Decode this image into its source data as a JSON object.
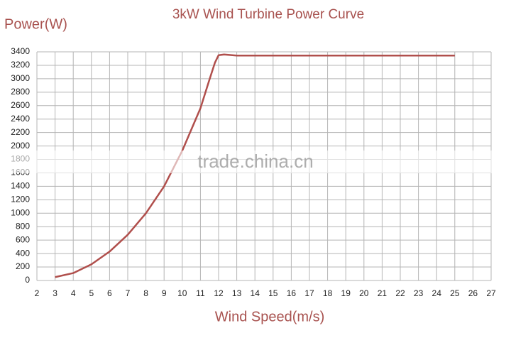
{
  "chart_data": {
    "type": "line",
    "title": "3kW Wind Turbine Power Curve",
    "y_label": "Power(W)",
    "x_label": "Wind Speed(m/s)",
    "watermark": "trade.china.cn",
    "x": [
      3,
      4,
      5,
      6,
      7,
      8,
      9,
      10,
      11,
      11.5,
      11.8,
      12,
      12.3,
      13,
      25
    ],
    "series": [
      {
        "name": "Power",
        "color": "#b04f4c",
        "values": [
          50,
          110,
          240,
          430,
          680,
          1000,
          1400,
          1930,
          2560,
          2990,
          3240,
          3350,
          3360,
          3345,
          3345
        ]
      }
    ],
    "xlim": [
      2,
      27
    ],
    "xticks": [
      2,
      3,
      4,
      5,
      6,
      7,
      8,
      9,
      10,
      11,
      12,
      13,
      14,
      15,
      16,
      17,
      18,
      19,
      20,
      21,
      22,
      23,
      24,
      25,
      26,
      27
    ],
    "ylim": [
      0,
      3400
    ],
    "yticks": [
      0,
      200,
      400,
      600,
      800,
      1000,
      1200,
      1400,
      1600,
      1800,
      2000,
      2200,
      2400,
      2600,
      2800,
      3000,
      3200,
      3400
    ],
    "grid": true
  }
}
